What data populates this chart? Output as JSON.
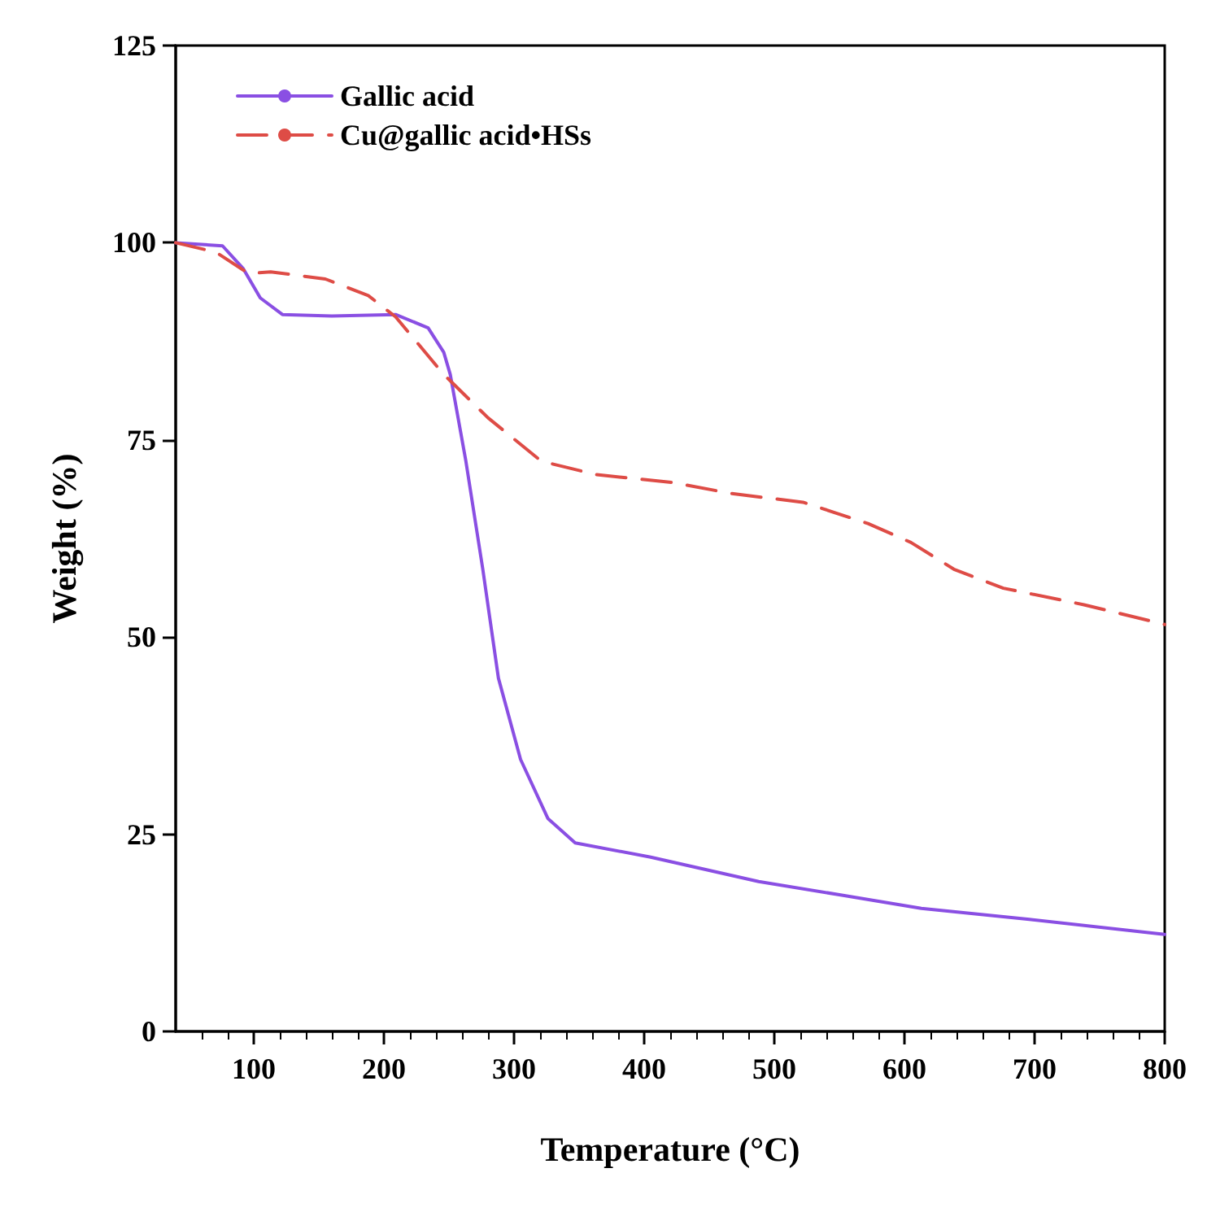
{
  "chart_data": {
    "type": "line",
    "xlabel": "Temperature (°C)",
    "ylabel": "Weight (%)",
    "xlim": [
      40,
      800
    ],
    "ylim": [
      0,
      125
    ],
    "xticks": [
      {
        "value": 60,
        "label": null
      },
      {
        "value": 80,
        "label": null
      },
      100,
      {
        "value": 120,
        "label": null
      },
      {
        "value": 140,
        "label": null
      },
      {
        "value": 160,
        "label": null
      },
      {
        "value": 180,
        "label": null
      },
      200,
      {
        "value": 220,
        "label": null
      },
      {
        "value": 240,
        "label": null
      },
      {
        "value": 260,
        "label": null
      },
      {
        "value": 280,
        "label": null
      },
      300,
      {
        "value": 320,
        "label": null
      },
      {
        "value": 340,
        "label": null
      },
      {
        "value": 360,
        "label": null
      },
      {
        "value": 380,
        "label": null
      },
      400,
      {
        "value": 420,
        "label": null
      },
      {
        "value": 440,
        "label": null
      },
      {
        "value": 460,
        "label": null
      },
      {
        "value": 480,
        "label": null
      },
      500,
      {
        "value": 520,
        "label": null
      },
      {
        "value": 540,
        "label": null
      },
      {
        "value": 560,
        "label": null
      },
      {
        "value": 580,
        "label": null
      },
      600,
      {
        "value": 620,
        "label": null
      },
      {
        "value": 640,
        "label": null
      },
      {
        "value": 660,
        "label": null
      },
      {
        "value": 680,
        "label": null
      },
      700,
      {
        "value": 720,
        "label": null
      },
      {
        "value": 740,
        "label": null
      },
      {
        "value": 760,
        "label": null
      },
      {
        "value": 780,
        "label": null
      },
      800
    ],
    "yticks": [
      0,
      25,
      50,
      75,
      100,
      125
    ],
    "grid": false,
    "legend": "top left",
    "marker": "none",
    "series": [
      {
        "name": "Gallic acid",
        "color": "#8a4fe3",
        "line_style": "solid",
        "x": [
          40,
          76,
          92,
          105,
          122,
          160,
          209,
          234,
          246,
          251,
          263,
          276,
          288,
          305,
          326,
          347,
          405,
          488,
          551,
          613,
          696,
          800
        ],
        "values": [
          100,
          99.6,
          96.7,
          93.0,
          90.9,
          90.7,
          90.9,
          89.2,
          86.1,
          83.3,
          72.3,
          58.6,
          44.8,
          34.5,
          27.0,
          23.9,
          22.1,
          19.0,
          17.3,
          15.6,
          14.2,
          12.3
        ]
      },
      {
        "name": "Cu@gallic acid•HSs",
        "color": "#de4c46",
        "line_style": "dashed",
        "x": [
          40,
          71,
          96,
          113,
          155,
          188,
          209,
          246,
          280,
          321,
          363,
          422,
          467,
          522,
          572,
          605,
          638,
          676,
          738,
          800
        ],
        "values": [
          100,
          98.8,
          96.1,
          96.3,
          95.4,
          93.3,
          90.6,
          83.3,
          77.8,
          72.3,
          70.6,
          69.6,
          68.2,
          67.1,
          64.4,
          62.0,
          58.6,
          56.2,
          54.1,
          51.6
        ]
      }
    ]
  }
}
